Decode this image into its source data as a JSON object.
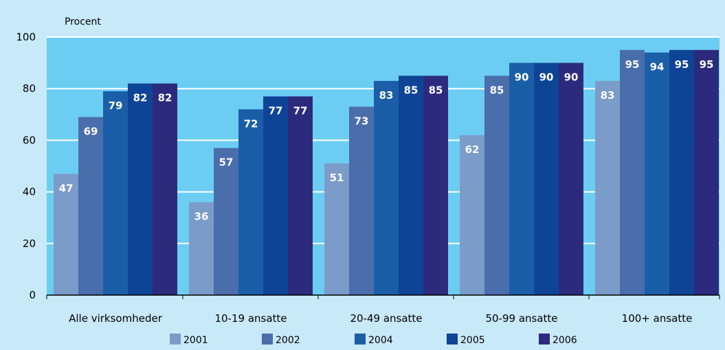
{
  "chart_data": {
    "type": "bar",
    "ylabel": "Procent",
    "ylim": [
      0,
      100
    ],
    "yticks": [
      "0",
      "20",
      "40",
      "60",
      "80",
      "100"
    ],
    "grid": true,
    "legend_position": "bottom",
    "categories": [
      "Alle virksomheder",
      "10-19 ansatte",
      "20-49 ansatte",
      "50-99 ansatte",
      "100+ ansatte"
    ],
    "series": [
      {
        "name": "2001",
        "color": "#7b9cc9",
        "values": [
          47,
          36,
          51,
          62,
          83
        ]
      },
      {
        "name": "2002",
        "color": "#4a6dac",
        "values": [
          69,
          57,
          73,
          85,
          95
        ]
      },
      {
        "name": "2004",
        "color": "#1a5ea8",
        "values": [
          79,
          72,
          83,
          90,
          94
        ]
      },
      {
        "name": "2005",
        "color": "#0e4496",
        "values": [
          82,
          77,
          85,
          90,
          95
        ]
      },
      {
        "name": "2006",
        "color": "#2c2a7c",
        "values": [
          82,
          77,
          85,
          90,
          95
        ]
      }
    ],
    "colors": {
      "page_background": "#c8e9f8",
      "plot_background": "#6ccdf2",
      "gridline": "#ffffff",
      "value_label": "#ffffff"
    }
  }
}
